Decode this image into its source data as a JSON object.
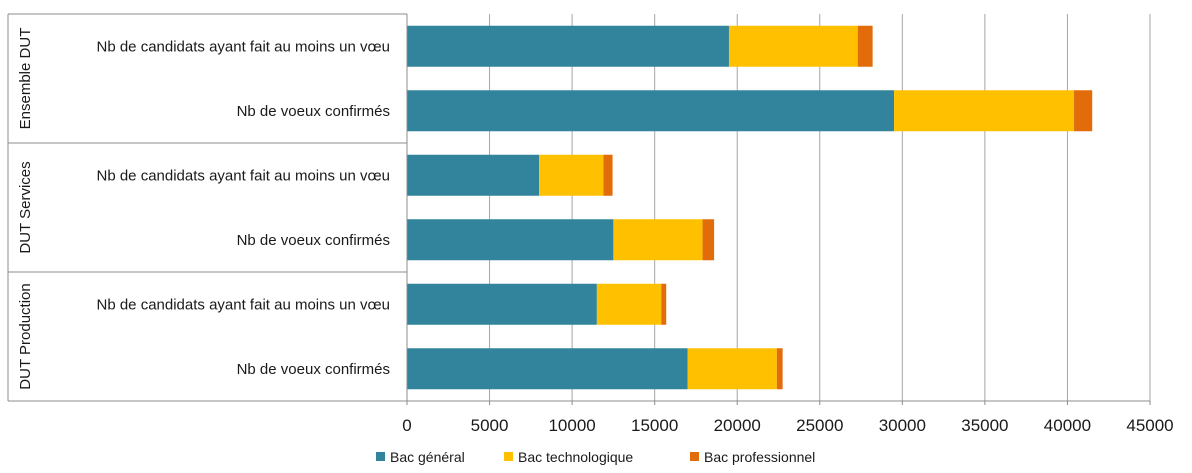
{
  "chart_data": {
    "type": "bar",
    "orientation": "horizontal",
    "stacked": true,
    "title": "",
    "xlabel": "",
    "ylabel": "",
    "xlim": [
      0,
      45000
    ],
    "ticks": [
      "0",
      "5000",
      "10000",
      "15000",
      "20000",
      "25000",
      "30000",
      "35000",
      "40000",
      "45000"
    ],
    "grid": true,
    "legend_position": "bottom",
    "groups": [
      {
        "label": "Ensemble DUT",
        "rows": [
          {
            "label": "Nb de candidats ayant fait au moins un vœu",
            "values": [
              19500,
              7800,
              900
            ]
          },
          {
            "label": "Nb de voeux confirmés",
            "values": [
              29500,
              10900,
              1100
            ]
          }
        ]
      },
      {
        "label": "DUT Services",
        "rows": [
          {
            "label": "Nb de candidats ayant fait au moins  un vœu",
            "values": [
              8000,
              3900,
              550
            ]
          },
          {
            "label": "Nb de voeux confirmés",
            "values": [
              12500,
              5400,
              700
            ]
          }
        ]
      },
      {
        "label": "DUT Production",
        "rows": [
          {
            "label": "Nb de candidats ayant fait au moins un vœu",
            "values": [
              11500,
              3900,
              300
            ]
          },
          {
            "label": "Nb de voeux confirmés",
            "values": [
              17000,
              5400,
              350
            ]
          }
        ]
      }
    ],
    "series": [
      {
        "name": "Bac général",
        "color": "#31849B"
      },
      {
        "name": "Bac technologique",
        "color": "#FFC000"
      },
      {
        "name": "Bac professionnel",
        "color": "#E36C0A"
      }
    ]
  }
}
